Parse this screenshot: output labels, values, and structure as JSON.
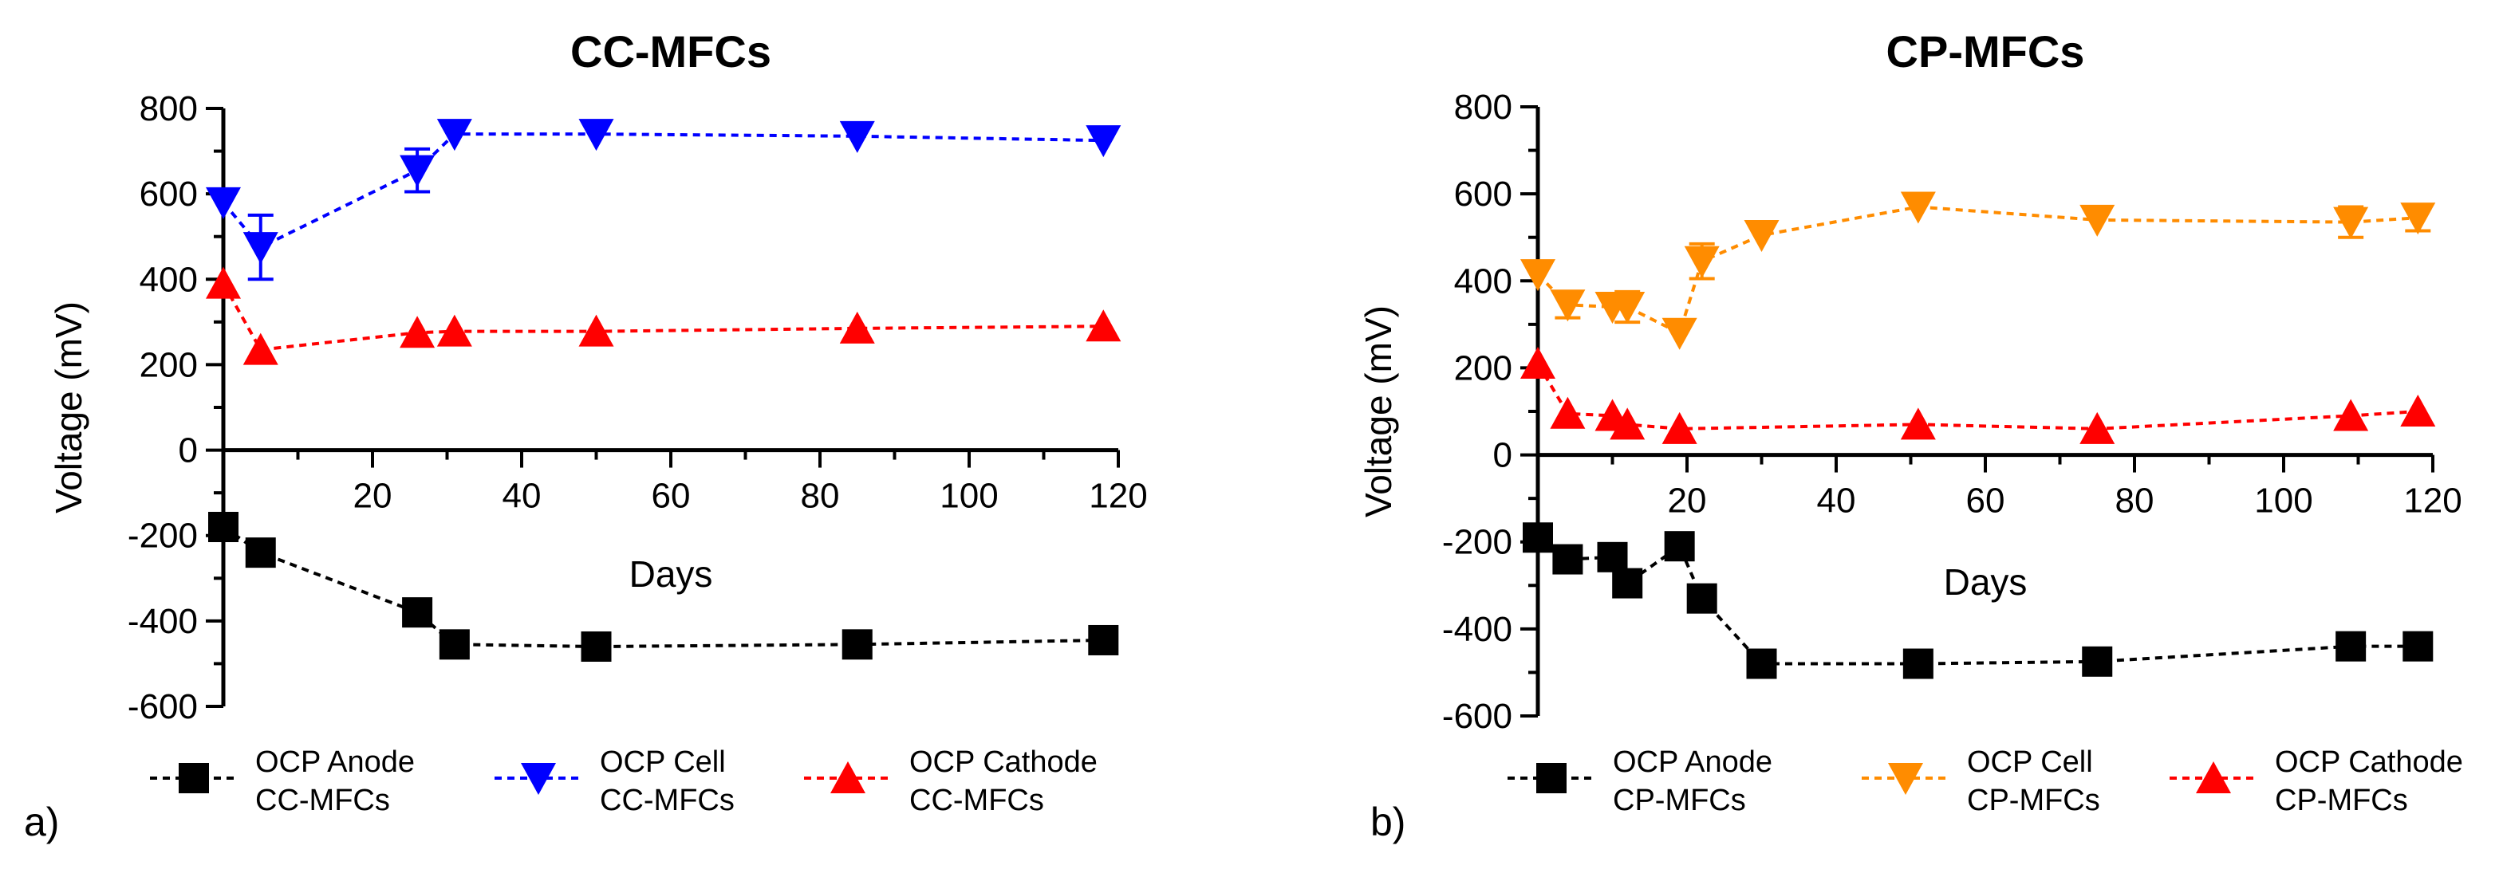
{
  "chart_data": [
    {
      "type": "line",
      "title": "CC-MFCs",
      "panel_label": "a)",
      "xlabel": "Days",
      "ylabel": "Voltage (mV)",
      "xlim": [
        0,
        120
      ],
      "ylim": [
        -600,
        800
      ],
      "xticks": [
        20,
        40,
        60,
        80,
        100,
        120
      ],
      "yticks": [
        800,
        600,
        400,
        200,
        0,
        -200,
        -400,
        -600
      ],
      "series": [
        {
          "name_line1": "OCP Anode",
          "name_line2": "CC-MFCs",
          "color": "#000000",
          "marker": "square",
          "x": [
            0,
            5,
            26,
            31,
            50,
            85,
            118
          ],
          "y": [
            -180,
            -240,
            -380,
            -455,
            -460,
            -455,
            -445
          ],
          "err": [
            0,
            0,
            0,
            0,
            0,
            0,
            0
          ]
        },
        {
          "name_line1": "OCP Cell",
          "name_line2": "CC-MFCs",
          "color": "#0000ff",
          "marker": "triangle-down",
          "x": [
            0,
            5,
            26,
            31,
            50,
            85,
            118
          ],
          "y": [
            580,
            475,
            655,
            740,
            740,
            735,
            725
          ],
          "err": [
            0,
            75,
            50,
            0,
            0,
            0,
            0
          ]
        },
        {
          "name_line1": "OCP Cathode",
          "name_line2": "CC-MFCs",
          "color": "#ff0000",
          "marker": "triangle-up",
          "x": [
            0,
            5,
            26,
            31,
            50,
            85,
            118
          ],
          "y": [
            390,
            235,
            275,
            278,
            278,
            285,
            290
          ],
          "err": [
            0,
            0,
            0,
            0,
            0,
            0,
            0
          ]
        }
      ]
    },
    {
      "type": "line",
      "title": "CP-MFCs",
      "panel_label": "b)",
      "xlabel": "Days",
      "ylabel": "Voltage (mV)",
      "xlim": [
        0,
        120
      ],
      "ylim": [
        -600,
        800
      ],
      "xticks": [
        20,
        40,
        60,
        80,
        100,
        120
      ],
      "yticks": [
        800,
        600,
        400,
        200,
        0,
        -200,
        -400,
        -600
      ],
      "series": [
        {
          "name_line1": "OCP Anode",
          "name_line2": "CP-MFCs",
          "color": "#000000",
          "marker": "square",
          "x": [
            0,
            4,
            10,
            12,
            19,
            22,
            30,
            51,
            75,
            109,
            118
          ],
          "y": [
            -190,
            -240,
            -235,
            -295,
            -210,
            -330,
            -480,
            -480,
            -475,
            -440,
            -440
          ],
          "err": [
            0,
            0,
            0,
            0,
            0,
            0,
            0,
            0,
            0,
            0,
            0
          ]
        },
        {
          "name_line1": "OCP Cell",
          "name_line2": "CP-MFCs",
          "color": "#ff8c00",
          "marker": "triangle-down",
          "x": [
            0,
            4,
            10,
            12,
            19,
            22,
            30,
            51,
            75,
            109,
            118
          ],
          "y": [
            415,
            345,
            340,
            340,
            280,
            445,
            505,
            570,
            540,
            535,
            545
          ],
          "err": [
            0,
            30,
            0,
            35,
            0,
            40,
            0,
            0,
            0,
            35,
            30
          ]
        },
        {
          "name_line1": "OCP Cathode",
          "name_line2": "CP-MFCs",
          "color": "#ff0000",
          "marker": "triangle-up",
          "x": [
            0,
            4,
            10,
            12,
            19,
            51,
            75,
            109,
            118
          ],
          "y": [
            210,
            95,
            90,
            70,
            60,
            70,
            60,
            90,
            100
          ],
          "err": [
            0,
            0,
            0,
            0,
            0,
            0,
            0,
            0,
            0
          ]
        }
      ]
    }
  ]
}
